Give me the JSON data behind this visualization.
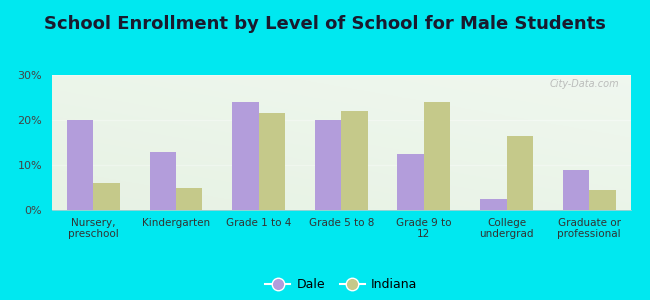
{
  "title": "School Enrollment by Level of School for Male Students",
  "categories": [
    "Nursery,\npreschool",
    "Kindergarten",
    "Grade 1 to 4",
    "Grade 5 to 8",
    "Grade 9 to\n12",
    "College\nundergrad",
    "Graduate or\nprofessional"
  ],
  "dale_values": [
    20.0,
    13.0,
    24.0,
    20.0,
    12.5,
    2.5,
    9.0
  ],
  "indiana_values": [
    6.0,
    5.0,
    21.5,
    22.0,
    24.0,
    16.5,
    4.5
  ],
  "dale_color": "#b39ddb",
  "indiana_color": "#c5c98a",
  "background_outer": "#00e8f0",
  "background_inner_tl": "#e8f5e9",
  "background_inner_br": "#f8fff8",
  "title_fontsize": 13,
  "bar_width": 0.32,
  "ylim": [
    0,
    30
  ],
  "yticks": [
    0,
    10,
    20,
    30
  ],
  "ytick_labels": [
    "0%",
    "10%",
    "20%",
    "30%"
  ],
  "legend_labels": [
    "Dale",
    "Indiana"
  ],
  "watermark": "City-Data.com"
}
